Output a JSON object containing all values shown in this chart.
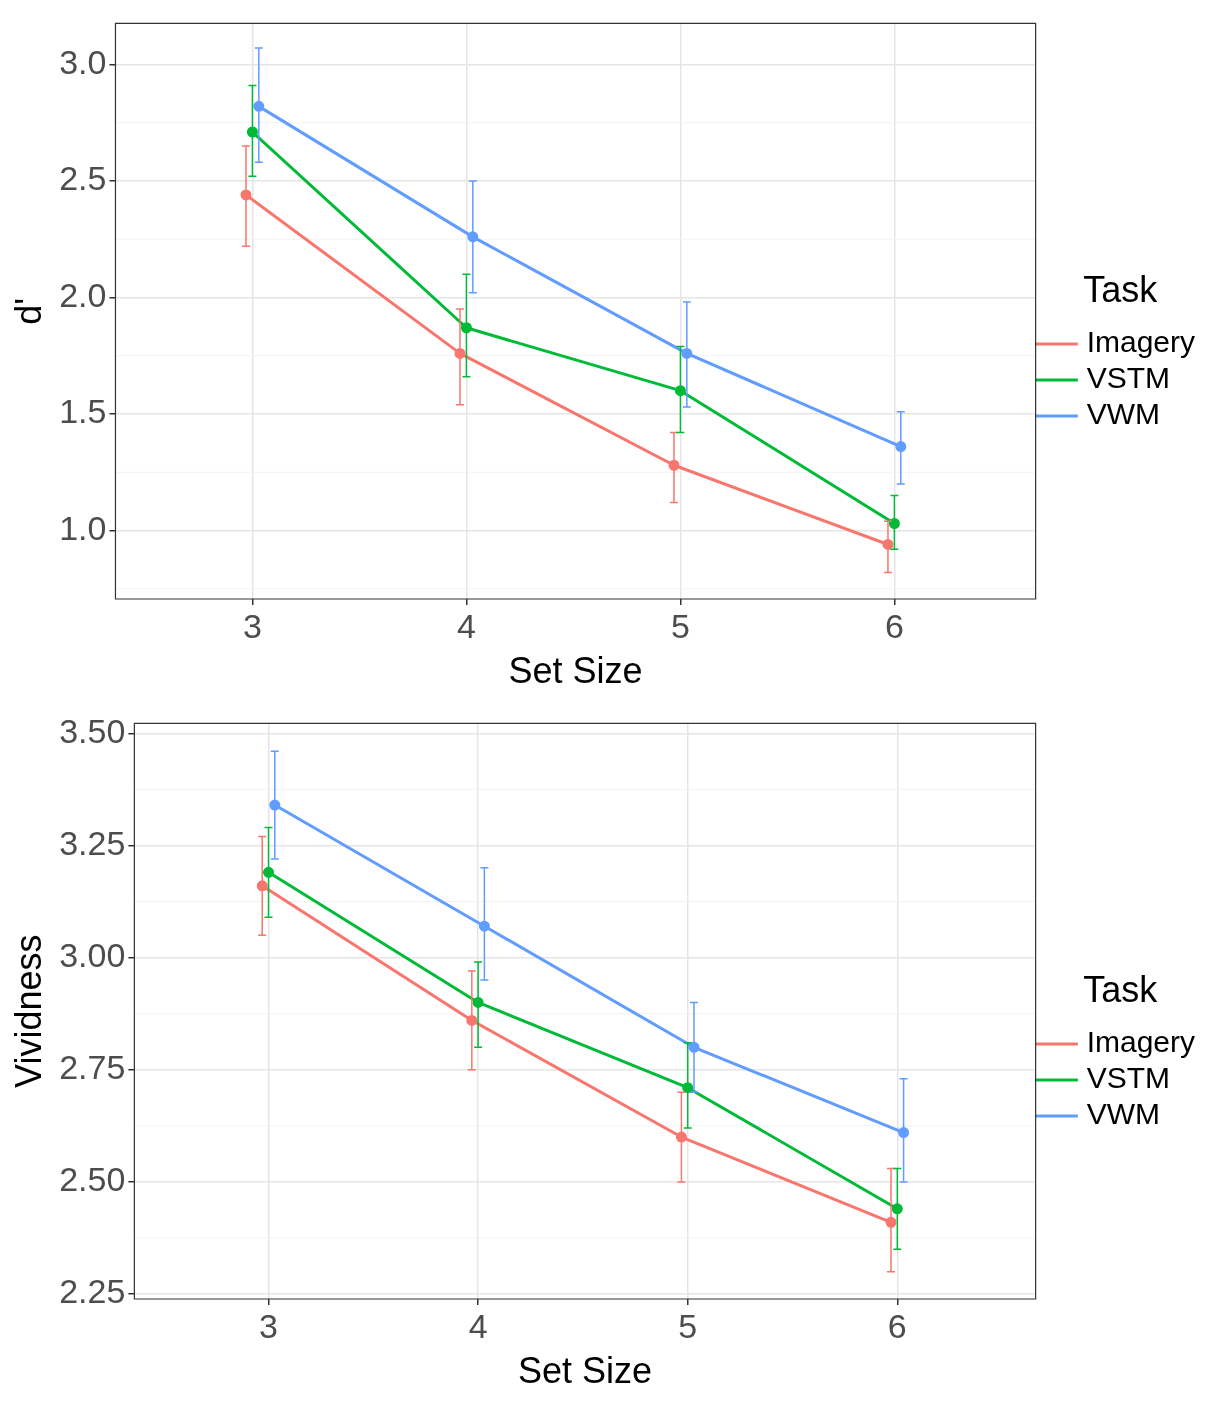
{
  "chart_data": [
    {
      "type": "line",
      "xlabel": "Set Size",
      "ylabel": "d'",
      "legend_title": "Task",
      "legend": "right",
      "grid": true,
      "marker": "circle",
      "line_style": "solid",
      "xlim": [
        2.36,
        6.66
      ],
      "xticks": [
        3,
        4,
        5,
        6
      ],
      "ylim": [
        0.706,
        3.176
      ],
      "yticks": [
        {
          "value": 1.0,
          "label": "1.0"
        },
        1.5,
        {
          "value": 2.0,
          "label": "2.0"
        },
        2.5,
        {
          "value": 3.0,
          "label": "3.0"
        }
      ],
      "series": [
        {
          "name": "Imagery",
          "color": "#f8766d",
          "x": [
            2.97,
            3.97,
            4.97,
            5.97
          ],
          "values": [
            2.44,
            1.76,
            1.28,
            0.94
          ],
          "errors": [
            [
              2.22,
              2.65
            ],
            [
              1.54,
              1.95
            ],
            [
              1.12,
              1.42
            ],
            [
              0.82,
              1.04
            ]
          ]
        },
        {
          "name": "VSTM",
          "color": "#00ba38",
          "x": [
            3,
            4,
            5,
            6
          ],
          "values": [
            2.71,
            1.87,
            1.6,
            1.03
          ],
          "errors": [
            [
              2.52,
              2.91
            ],
            [
              1.66,
              2.1
            ],
            [
              1.42,
              1.79
            ],
            [
              0.92,
              1.15
            ]
          ]
        },
        {
          "name": "VWM",
          "color": "#619cff",
          "x": [
            3.03,
            4.03,
            5.03,
            6.03
          ],
          "values": [
            2.82,
            2.26,
            1.76,
            1.36
          ],
          "errors": [
            [
              2.58,
              3.07
            ],
            [
              2.02,
              2.5
            ],
            [
              1.53,
              1.98
            ],
            [
              1.2,
              1.51
            ]
          ]
        }
      ]
    },
    {
      "type": "line",
      "xlabel": "Set Size",
      "ylabel": "Vividness",
      "legend_title": "Task",
      "legend": "right",
      "grid": true,
      "marker": "circle",
      "line_style": "solid",
      "xlim": [
        2.36,
        6.66
      ],
      "xticks": [
        3,
        4,
        5,
        6
      ],
      "ylim": [
        2.239,
        3.522
      ],
      "yticks": [
        {
          "value": 2.25,
          "label": "2.25"
        },
        {
          "value": 2.5,
          "label": "2.50"
        },
        {
          "value": 2.75,
          "label": "2.75"
        },
        {
          "value": 3.0,
          "label": "3.00"
        },
        {
          "value": 3.25,
          "label": "3.25"
        },
        {
          "value": 3.5,
          "label": "3.50"
        }
      ],
      "series": [
        {
          "name": "Imagery",
          "color": "#f8766d",
          "x": [
            2.97,
            3.97,
            4.97,
            5.97
          ],
          "values": [
            3.16,
            2.86,
            2.6,
            2.41
          ],
          "errors": [
            [
              3.05,
              3.27
            ],
            [
              2.75,
              2.97
            ],
            [
              2.5,
              2.7
            ],
            [
              2.3,
              2.53
            ]
          ]
        },
        {
          "name": "VSTM",
          "color": "#00ba38",
          "x": [
            3,
            4,
            5,
            6
          ],
          "values": [
            3.19,
            2.9,
            2.71,
            2.44
          ],
          "errors": [
            [
              3.09,
              3.29
            ],
            [
              2.8,
              2.99
            ],
            [
              2.62,
              2.81
            ],
            [
              2.35,
              2.53
            ]
          ]
        },
        {
          "name": "VWM",
          "color": "#619cff",
          "x": [
            3.03,
            4.03,
            5.03,
            6.03
          ],
          "values": [
            3.34,
            3.07,
            2.8,
            2.61
          ],
          "errors": [
            [
              3.22,
              3.46
            ],
            [
              2.95,
              3.2
            ],
            [
              2.7,
              2.9
            ],
            [
              2.5,
              2.73
            ]
          ]
        }
      ]
    }
  ]
}
